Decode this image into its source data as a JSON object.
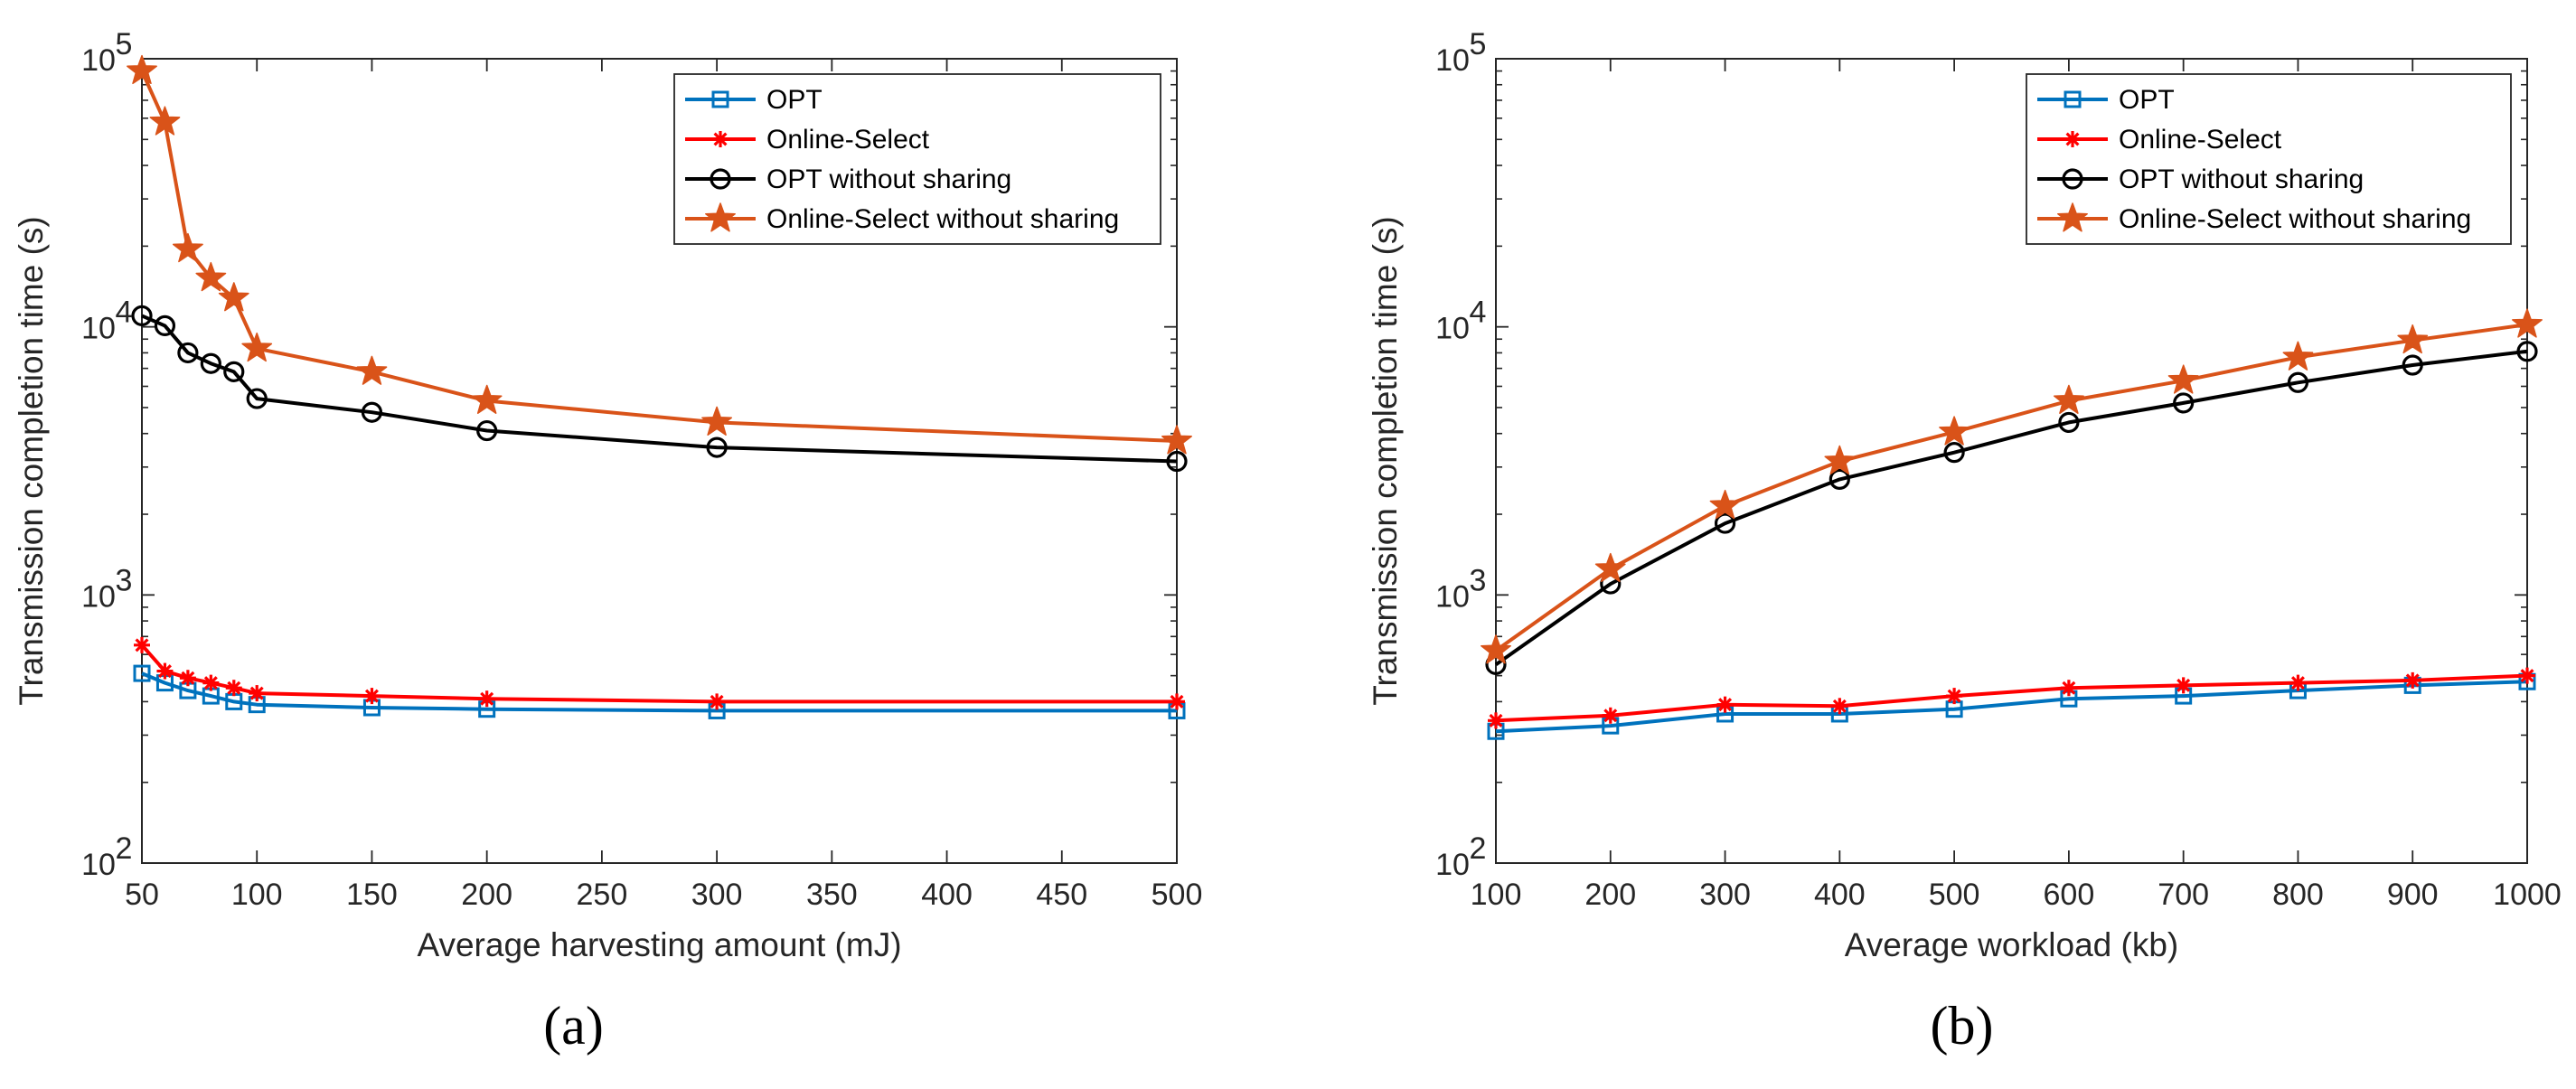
{
  "chart_data": [
    {
      "type": "line",
      "panel_label": "(a)",
      "xlabel": "Average harvesting amount (mJ)",
      "ylabel": "Transmission completion time (s)",
      "yscale": "log",
      "xlim": [
        50,
        500
      ],
      "ylim": [
        100,
        100000
      ],
      "xticks": [
        50,
        100,
        150,
        200,
        250,
        300,
        350,
        400,
        450,
        500
      ],
      "yticks": [
        {
          "base": "10",
          "exp": "2",
          "value": 100
        },
        {
          "base": "10",
          "exp": "3",
          "value": 1000
        },
        {
          "base": "10",
          "exp": "4",
          "value": 10000
        },
        {
          "base": "10",
          "exp": "5",
          "value": 100000
        }
      ],
      "legend_position": "top-right",
      "x": [
        50,
        60,
        70,
        80,
        90,
        100,
        150,
        200,
        300,
        500
      ],
      "series": [
        {
          "name": "OPT",
          "color": "#0072BD",
          "marker": "square",
          "values": [
            510,
            470,
            440,
            420,
            400,
            390,
            380,
            375,
            370,
            370
          ]
        },
        {
          "name": "Online-Select",
          "color": "#FF0000",
          "marker": "asterisk",
          "values": [
            650,
            520,
            490,
            470,
            450,
            430,
            420,
            410,
            400,
            400
          ]
        },
        {
          "name": "OPT without sharing",
          "color": "#000000",
          "marker": "circle",
          "values": [
            11000,
            10100,
            8000,
            7300,
            6800,
            5400,
            4800,
            4100,
            3550,
            3150
          ]
        },
        {
          "name": "Online-Select without sharing",
          "color": "#D95319",
          "marker": "star",
          "values": [
            90000,
            58000,
            19500,
            15200,
            12800,
            8300,
            6800,
            5300,
            4400,
            3750
          ]
        }
      ]
    },
    {
      "type": "line",
      "panel_label": "(b)",
      "xlabel": "Average workload (kb)",
      "ylabel": "Transmission completion time (s)",
      "yscale": "log",
      "xlim": [
        100,
        1000
      ],
      "ylim": [
        100,
        100000
      ],
      "xticks": [
        100,
        200,
        300,
        400,
        500,
        600,
        700,
        800,
        900,
        1000
      ],
      "yticks": [
        {
          "base": "10",
          "exp": "2",
          "value": 100
        },
        {
          "base": "10",
          "exp": "3",
          "value": 1000
        },
        {
          "base": "10",
          "exp": "4",
          "value": 10000
        },
        {
          "base": "10",
          "exp": "5",
          "value": 100000
        }
      ],
      "legend_position": "top-right",
      "x": [
        100,
        200,
        300,
        400,
        500,
        600,
        700,
        800,
        900,
        1000
      ],
      "series": [
        {
          "name": "OPT",
          "color": "#0072BD",
          "marker": "square",
          "values": [
            310,
            325,
            360,
            360,
            375,
            410,
            420,
            440,
            460,
            475
          ]
        },
        {
          "name": "Online-Select",
          "color": "#FF0000",
          "marker": "asterisk",
          "values": [
            340,
            355,
            390,
            385,
            420,
            450,
            460,
            470,
            480,
            500
          ]
        },
        {
          "name": "OPT without sharing",
          "color": "#000000",
          "marker": "circle",
          "values": [
            550,
            1100,
            1850,
            2700,
            3400,
            4400,
            5200,
            6200,
            7200,
            8100
          ]
        },
        {
          "name": "Online-Select without sharing",
          "color": "#D95319",
          "marker": "star",
          "values": [
            620,
            1250,
            2150,
            3150,
            4050,
            5300,
            6300,
            7700,
            8900,
            10200
          ]
        }
      ]
    }
  ]
}
